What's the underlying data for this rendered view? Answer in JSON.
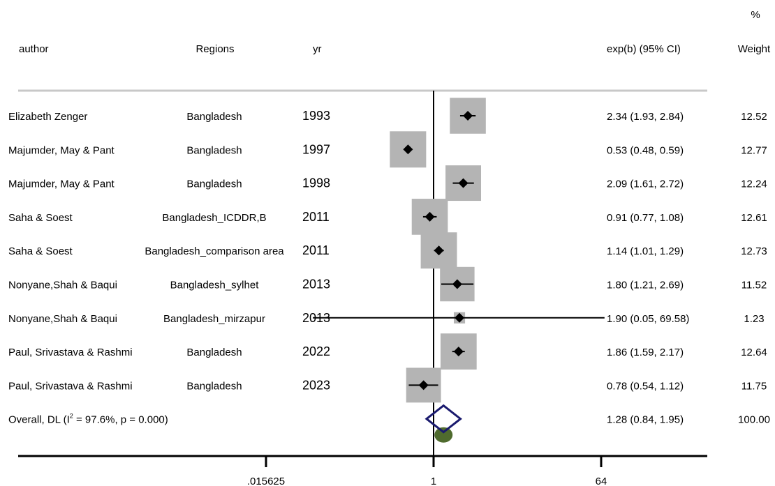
{
  "chart_data": {
    "type": "forest",
    "headers": {
      "author": "author",
      "region": "Regions",
      "year": "yr",
      "effect": "exp(b) (95% CI)",
      "weight_top": "%",
      "weight": "Weight"
    },
    "x_scale": "log",
    "x_ticks": [
      {
        "value": 0.015625,
        "label": ".015625"
      },
      {
        "value": 1,
        "label": "1"
      },
      {
        "value": 64,
        "label": "64"
      }
    ],
    "studies": [
      {
        "author": "Elizabeth Zenger",
        "region": "Bangladesh",
        "year": "1993",
        "estimate": 2.34,
        "ci_low": 1.93,
        "ci_high": 2.84,
        "ci_text": "2.34 (1.93, 2.84)",
        "weight": 12.52,
        "weight_text": "12.52"
      },
      {
        "author": "Majumder, May & Pant",
        "region": "Bangladesh",
        "year": "1997",
        "estimate": 0.53,
        "ci_low": 0.48,
        "ci_high": 0.59,
        "ci_text": "0.53 (0.48, 0.59)",
        "weight": 12.77,
        "weight_text": "12.77"
      },
      {
        "author": "Majumder, May & Pant",
        "region": "Bangladesh",
        "year": "1998",
        "estimate": 2.09,
        "ci_low": 1.61,
        "ci_high": 2.72,
        "ci_text": "2.09 (1.61, 2.72)",
        "weight": 12.24,
        "weight_text": "12.24"
      },
      {
        "author": "Saha & Soest",
        "region": "Bangladesh_ICDDR,B",
        "year": "2011",
        "estimate": 0.91,
        "ci_low": 0.77,
        "ci_high": 1.08,
        "ci_text": "0.91 (0.77, 1.08)",
        "weight": 12.61,
        "weight_text": "12.61"
      },
      {
        "author": "Saha & Soest",
        "region": "Bangladesh_comparison area",
        "year": "2011",
        "estimate": 1.14,
        "ci_low": 1.01,
        "ci_high": 1.29,
        "ci_text": "1.14 (1.01, 1.29)",
        "weight": 12.73,
        "weight_text": "12.73"
      },
      {
        "author": "Nonyane,Shah & Baqui",
        "region": "Bangladesh_sylhet",
        "year": "2013",
        "estimate": 1.8,
        "ci_low": 1.21,
        "ci_high": 2.69,
        "ci_text": "1.80 (1.21, 2.69)",
        "weight": 11.52,
        "weight_text": "11.52"
      },
      {
        "author": "Nonyane,Shah & Baqui",
        "region": "Bangladesh_mirzapur",
        "year": "2013",
        "estimate": 1.9,
        "ci_low": 0.05,
        "ci_high": 69.58,
        "ci_text": "1.90 (0.05, 69.58)",
        "weight": 1.23,
        "weight_text": "1.23"
      },
      {
        "author": "Paul, Srivastava & Rashmi",
        "region": "Bangladesh",
        "year": "2022",
        "estimate": 1.86,
        "ci_low": 1.59,
        "ci_high": 2.17,
        "ci_text": "1.86 (1.59, 2.17)",
        "weight": 12.64,
        "weight_text": "12.64"
      },
      {
        "author": "Paul, Srivastava & Rashmi",
        "region": "Bangladesh",
        "year": "2023",
        "estimate": 0.78,
        "ci_low": 0.54,
        "ci_high": 1.12,
        "ci_text": "0.78 (0.54, 1.12)",
        "weight": 11.75,
        "weight_text": "11.75"
      }
    ],
    "overall": {
      "label_prefix": "Overall, DL (I",
      "label_sup": "2",
      "label_suffix": " = 97.6%, p = 0.000)",
      "estimate": 1.28,
      "ci_low": 0.84,
      "ci_high": 1.95,
      "ci_text": "1.28 (0.84, 1.95)",
      "weight_text": "100.00"
    },
    "colors": {
      "weight_box": "#b4b4b4",
      "point": "#000000",
      "diamond": "#1a1a6e",
      "prediction_marker": "#4f6b2e",
      "header_rule": "#c8c8c8",
      "axis": "#000000"
    }
  }
}
